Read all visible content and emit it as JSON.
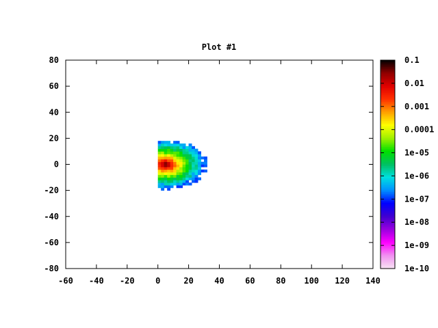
{
  "chart_data": {
    "type": "heatmap",
    "title": "Plot #1",
    "xlabel": "",
    "ylabel": "",
    "xlim": [
      -60,
      140
    ],
    "ylim": [
      -80,
      80
    ],
    "x_ticks": [
      "-60",
      "-40",
      "-20",
      "0",
      "20",
      "40",
      "60",
      "80",
      "100",
      "120",
      "140"
    ],
    "y_ticks": [
      "80",
      "60",
      "40",
      "20",
      "0",
      "-20",
      "-40",
      "-60",
      "-80"
    ],
    "colorbar": {
      "scale": "log",
      "range": [
        1e-10,
        0.1
      ],
      "ticks": [
        "0.1",
        "0.01",
        "0.001",
        "0.0001",
        "1e-05",
        "1e-06",
        "1e-07",
        "1e-08",
        "1e-09",
        "1e-10"
      ],
      "colors": [
        "#f8e4f4",
        "#f090f0",
        "#ff00ff",
        "#9a00e0",
        "#4000d0",
        "#0000ff",
        "#0090ff",
        "#00e0e0",
        "#00c060",
        "#00e000",
        "#a0f000",
        "#ffff00",
        "#ffa000",
        "#ff3000",
        "#e00000",
        "#900000",
        "#000000"
      ]
    },
    "data_region": {
      "x_min": 0,
      "x_max": 32,
      "y_min": -20,
      "y_max": 19,
      "peak": {
        "x": 5,
        "y": 0,
        "value": 0.1
      },
      "min_value": 1e-07
    }
  }
}
